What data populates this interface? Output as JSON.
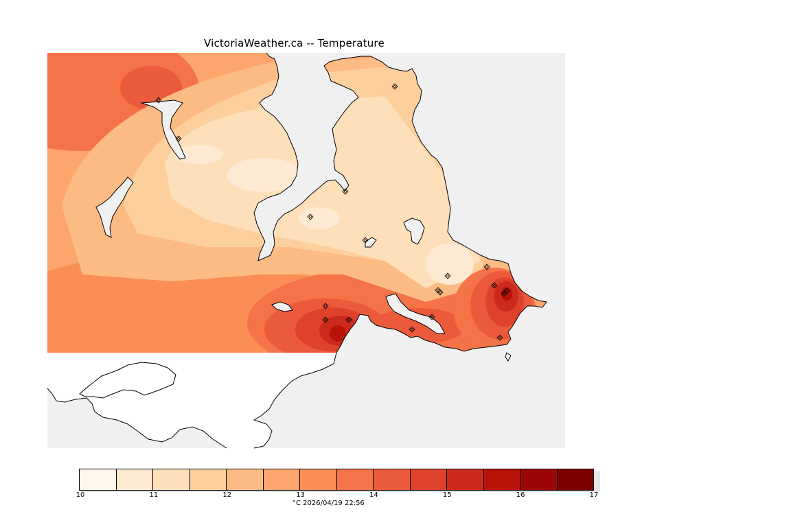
{
  "title": "VictoriaWeather.ca -- Temperature",
  "legend": {
    "unit": "°C",
    "timestamp": "2026/04/19 22:56",
    "caption": "°C  2026/04/19 22:56",
    "min": 10,
    "max": 17,
    "step": 0.5,
    "tick_labels": [
      "10",
      "11",
      "12",
      "13",
      "14",
      "15",
      "16",
      "17"
    ],
    "colors": [
      "#fef5eb",
      "#feead3",
      "#fddfb9",
      "#fdcf9d",
      "#fdbb84",
      "#fca66d",
      "#fb8e56",
      "#f57348",
      "#ec5a3c",
      "#de422b",
      "#cc2a1c",
      "#b91309",
      "#9c0705",
      "#7c0202"
    ]
  },
  "colors": {
    "water": "#f0f0f0",
    "no_data_land": "#ffffff",
    "coastline": "#000000"
  },
  "stations": {
    "marker": "diamond-icon",
    "count": 19
  }
}
